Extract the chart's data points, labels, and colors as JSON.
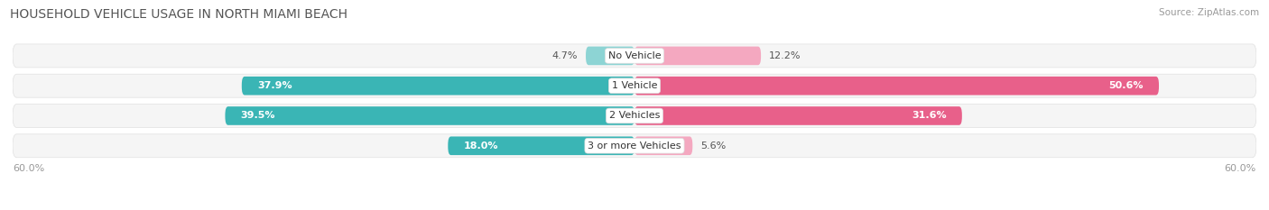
{
  "title": "HOUSEHOLD VEHICLE USAGE IN NORTH MIAMI BEACH",
  "source": "Source: ZipAtlas.com",
  "categories": [
    "No Vehicle",
    "1 Vehicle",
    "2 Vehicles",
    "3 or more Vehicles"
  ],
  "owner_values": [
    4.7,
    37.9,
    39.5,
    18.0
  ],
  "renter_values": [
    12.2,
    50.6,
    31.6,
    5.6
  ],
  "owner_color_dark": "#3ab5b5",
  "owner_color_light": "#8dd4d4",
  "renter_color_dark": "#e8608a",
  "renter_color_light": "#f4a8c0",
  "bar_bg_color": "#efefef",
  "row_bg_color": "#f5f5f5",
  "axis_max": 60.0,
  "title_fontsize": 10,
  "source_fontsize": 7.5,
  "label_fontsize": 8,
  "tick_fontsize": 8,
  "category_fontsize": 8,
  "dark_threshold": 15.0
}
